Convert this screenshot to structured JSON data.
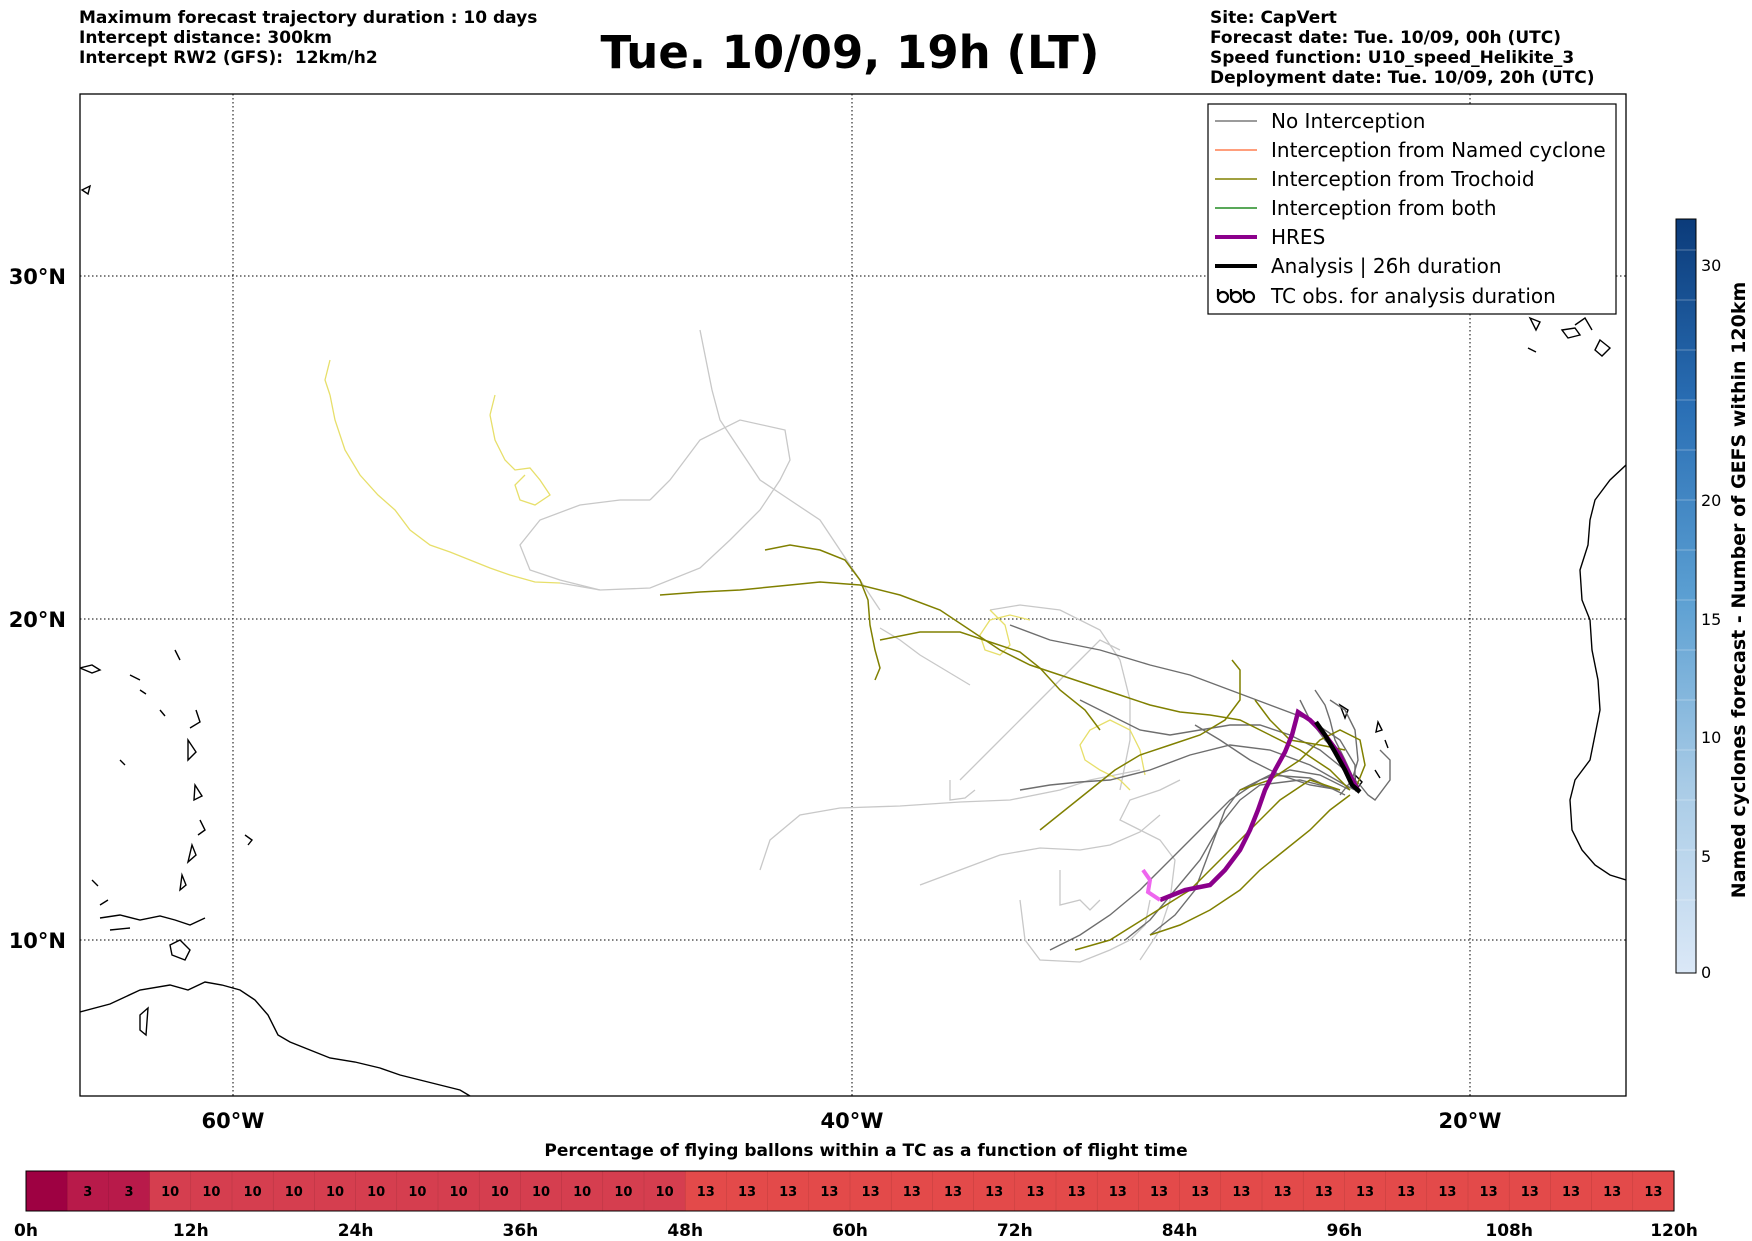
{
  "header": {
    "left": [
      "Maximum forecast trajectory duration : 10 days",
      "Intercept distance: 300km",
      "Intercept RW2 (GFS):  12km/h2"
    ],
    "title": "Tue. 10/09, 19h (LT)",
    "right": [
      "Site: CapVert",
      "Forecast date: Tue. 10/09, 00h (UTC)",
      "Speed function: U10_speed_Helikite_3",
      "Deployment date: Tue. 10/09, 20h (UTC)"
    ]
  },
  "map": {
    "lon_ticks": [
      "60°W",
      "40°W",
      "20°W"
    ],
    "lat_ticks": [
      "30°N",
      "20°N",
      "10°N"
    ],
    "gridlines": "dotted"
  },
  "legend": {
    "items": [
      {
        "label": "No Interception",
        "color": "#7a7a7a"
      },
      {
        "label": "Interception from Named cyclone",
        "color": "#ff7f50"
      },
      {
        "label": "Interception from Trochoid",
        "color": "#808000"
      },
      {
        "label": "Interception from both",
        "color": "#228b22"
      },
      {
        "label": "HRES",
        "color": "#8b008b"
      },
      {
        "label": "Analysis | 26h duration",
        "color": "#000000"
      },
      {
        "label": "TC obs. for analysis duration",
        "icon": "cyclone-symbol-icon"
      }
    ]
  },
  "colorbar": {
    "label": "Named cyclones forecast - Number of GEFS within 120km",
    "ticks": [
      "0",
      "5",
      "10",
      "15",
      "20",
      "30"
    ]
  },
  "bottom_bar": {
    "title": "Percentage of flying ballons within a TC as a function of flight time",
    "cells": [
      "",
      "3",
      "3",
      "10",
      "10",
      "10",
      "10",
      "10",
      "10",
      "10",
      "10",
      "10",
      "10",
      "10",
      "10",
      "10",
      "13",
      "13",
      "13",
      "13",
      "13",
      "13",
      "13",
      "13",
      "13",
      "13",
      "13",
      "13",
      "13",
      "13",
      "13",
      "13",
      "13",
      "13",
      "13",
      "13",
      "13",
      "13",
      "13",
      "13"
    ],
    "time_labels": [
      "0h",
      "12h",
      "24h",
      "36h",
      "48h",
      "60h",
      "72h",
      "84h",
      "96h",
      "108h",
      "120h"
    ],
    "colors": {
      "0": "#9e0142",
      "3": "#b81a4a",
      "10": "#d53e4f",
      "13": "#e34a4a"
    }
  }
}
